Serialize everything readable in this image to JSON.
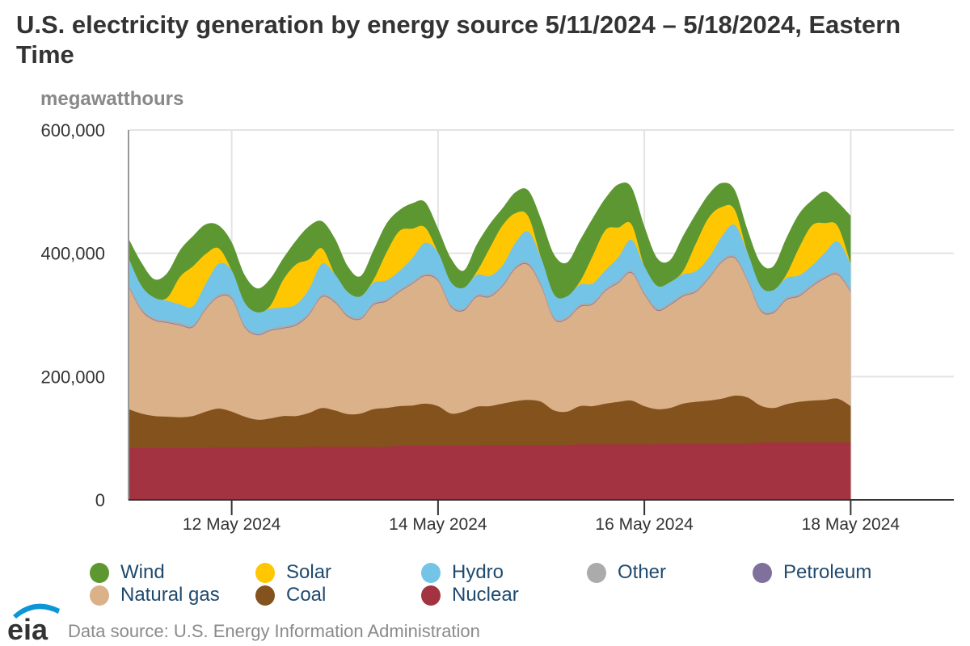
{
  "title": "U.S. electricity generation by energy source 5/11/2024 – 5/18/2024, Eastern Time",
  "source": "Data source: U.S. Energy Information Administration",
  "logo_text": "eia",
  "chart_data": {
    "type": "area",
    "stacked": true,
    "title": "U.S. electricity generation by energy source 5/11/2024 – 5/18/2024, Eastern Time",
    "ylabel": "megawatthours",
    "xlabel": "",
    "x_start": "5/11/2024 00:00",
    "x_step_hours": 3,
    "xlim_hours": [
      0,
      192
    ],
    "ylim": [
      0,
      600000
    ],
    "yticks": [
      0,
      200000,
      400000,
      600000
    ],
    "ytick_labels": [
      "0",
      "200,000",
      "400,000",
      "600,000"
    ],
    "xticks_hours": [
      24,
      72,
      120,
      168
    ],
    "xtick_labels": [
      "12 May 2024",
      "14 May 2024",
      "16 May 2024",
      "18 May 2024"
    ],
    "grid": true,
    "legend_position": "bottom",
    "series": [
      {
        "name": "Nuclear",
        "color": "#a33340",
        "values": [
          84000,
          84000,
          84000,
          84000,
          84000,
          84000,
          84000,
          85000,
          85000,
          85000,
          85000,
          85000,
          85000,
          85000,
          86000,
          86000,
          86000,
          86000,
          86000,
          86000,
          86000,
          88000,
          88000,
          88000,
          88000,
          88000,
          88000,
          88000,
          89000,
          89000,
          89000,
          89000,
          89000,
          89000,
          89000,
          90000,
          90000,
          90000,
          90000,
          90000,
          90000,
          90000,
          91000,
          91000,
          91000,
          91000,
          91000,
          91000,
          91000,
          93000,
          93000,
          93000,
          93000,
          93000,
          93000,
          93000,
          93000
        ]
      },
      {
        "name": "Coal",
        "color": "#84521d",
        "values": [
          63000,
          56000,
          52000,
          51000,
          50000,
          52000,
          59000,
          63000,
          58000,
          50000,
          45000,
          47000,
          51000,
          51000,
          55000,
          63000,
          59000,
          53000,
          54000,
          61000,
          63000,
          64000,
          65000,
          68000,
          64000,
          52000,
          55000,
          63000,
          63000,
          67000,
          71000,
          73000,
          70000,
          56000,
          54000,
          62000,
          62000,
          66000,
          69000,
          71000,
          62000,
          57000,
          58000,
          65000,
          68000,
          70000,
          73000,
          78000,
          75000,
          60000,
          56000,
          62000,
          66000,
          68000,
          69000,
          71000,
          59000
        ]
      },
      {
        "name": "Natural gas",
        "color": "#dbb18a",
        "values": [
          199000,
          167000,
          155000,
          152000,
          149000,
          144000,
          166000,
          181000,
          183000,
          145000,
          137000,
          142000,
          142000,
          147000,
          159000,
          180000,
          175000,
          158000,
          153000,
          169000,
          173000,
          185000,
          197000,
          207000,
          203000,
          173000,
          164000,
          178000,
          177000,
          190000,
          215000,
          219000,
          187000,
          148000,
          150000,
          161000,
          165000,
          183000,
          193000,
          207000,
          181000,
          160000,
          167000,
          174000,
          178000,
          198000,
          221000,
          223000,
          189000,
          154000,
          154000,
          169000,
          171000,
          185000,
          197000,
          201000,
          185000
        ]
      },
      {
        "name": "Petroleum",
        "color": "#7f709c",
        "values": [
          1000,
          1000,
          1000,
          1000,
          1000,
          1000,
          1000,
          1000,
          1000,
          1000,
          1000,
          1000,
          1000,
          1000,
          1000,
          1000,
          1000,
          1000,
          1000,
          1000,
          1000,
          1000,
          1000,
          1000,
          1000,
          1000,
          1000,
          1000,
          1000,
          1000,
          1000,
          1000,
          1000,
          1000,
          1000,
          1000,
          1000,
          1000,
          1000,
          1000,
          1000,
          1000,
          1000,
          1000,
          1000,
          1000,
          1000,
          1000,
          1000,
          1000,
          1000,
          1000,
          1000,
          1000,
          1000,
          1000,
          1000
        ]
      },
      {
        "name": "Other",
        "color": "#ababab",
        "values": [
          3000,
          3000,
          3000,
          3000,
          3000,
          3000,
          3000,
          3000,
          3000,
          3000,
          3000,
          3000,
          3000,
          3000,
          3000,
          3000,
          3000,
          3000,
          3000,
          3000,
          3000,
          3000,
          3000,
          3000,
          3000,
          3000,
          3000,
          3000,
          3000,
          3000,
          3000,
          3000,
          3000,
          3000,
          3000,
          3000,
          3000,
          3000,
          3000,
          3000,
          3000,
          3000,
          3000,
          3000,
          3000,
          3000,
          3000,
          3000,
          3000,
          3000,
          3000,
          3000,
          3000,
          3000,
          3000,
          3000,
          3000
        ]
      },
      {
        "name": "Hydro",
        "color": "#74c4e8",
        "values": [
          42000,
          36000,
          33000,
          32000,
          30000,
          30000,
          38000,
          50000,
          42000,
          36000,
          33000,
          32000,
          30000,
          30000,
          38000,
          50000,
          42000,
          36000,
          33000,
          32000,
          30000,
          30000,
          38000,
          50000,
          42000,
          36000,
          33000,
          32000,
          30000,
          30000,
          38000,
          50000,
          42000,
          36000,
          33000,
          32000,
          30000,
          30000,
          38000,
          50000,
          42000,
          36000,
          33000,
          32000,
          30000,
          30000,
          38000,
          50000,
          42000,
          36000,
          33000,
          32000,
          30000,
          30000,
          38000,
          50000,
          42000
        ]
      },
      {
        "name": "Solar",
        "color": "#ffc701",
        "values": [
          0,
          0,
          0,
          5000,
          45000,
          65000,
          48000,
          25000,
          0,
          0,
          0,
          5000,
          45000,
          65000,
          48000,
          25000,
          0,
          0,
          0,
          5000,
          45000,
          65000,
          48000,
          25000,
          0,
          0,
          0,
          5000,
          45000,
          65000,
          48000,
          25000,
          0,
          0,
          0,
          5000,
          45000,
          65000,
          48000,
          25000,
          0,
          0,
          0,
          5000,
          45000,
          65000,
          48000,
          25000,
          0,
          0,
          0,
          5000,
          45000,
          65000,
          48000,
          25000,
          0
        ]
      },
      {
        "name": "Wind",
        "color": "#5d9732",
        "values": [
          32000,
          38000,
          30000,
          40000,
          43000,
          49000,
          48000,
          37000,
          46000,
          45000,
          39000,
          44000,
          35000,
          39000,
          54000,
          44000,
          58000,
          42000,
          33000,
          48000,
          47000,
          34000,
          41000,
          41000,
          39000,
          39000,
          28000,
          44000,
          39000,
          28000,
          34000,
          42000,
          63000,
          65000,
          55000,
          67000,
          61000,
          52000,
          70000,
          60000,
          65000,
          45000,
          36000,
          57000,
          48000,
          38000,
          39000,
          32000,
          37000,
          38000,
          39000,
          59000,
          55000,
          41000,
          51000,
          39000,
          78000
        ]
      }
    ]
  },
  "legend": [
    {
      "label": "Wind",
      "color": "#5d9732"
    },
    {
      "label": "Solar",
      "color": "#ffc701"
    },
    {
      "label": "Hydro",
      "color": "#74c4e8"
    },
    {
      "label": "Other",
      "color": "#ababab"
    },
    {
      "label": "Petroleum",
      "color": "#7f709c"
    },
    {
      "label": "Natural gas",
      "color": "#dbb18a"
    },
    {
      "label": "Coal",
      "color": "#84521d"
    },
    {
      "label": "Nuclear",
      "color": "#a33340"
    }
  ]
}
